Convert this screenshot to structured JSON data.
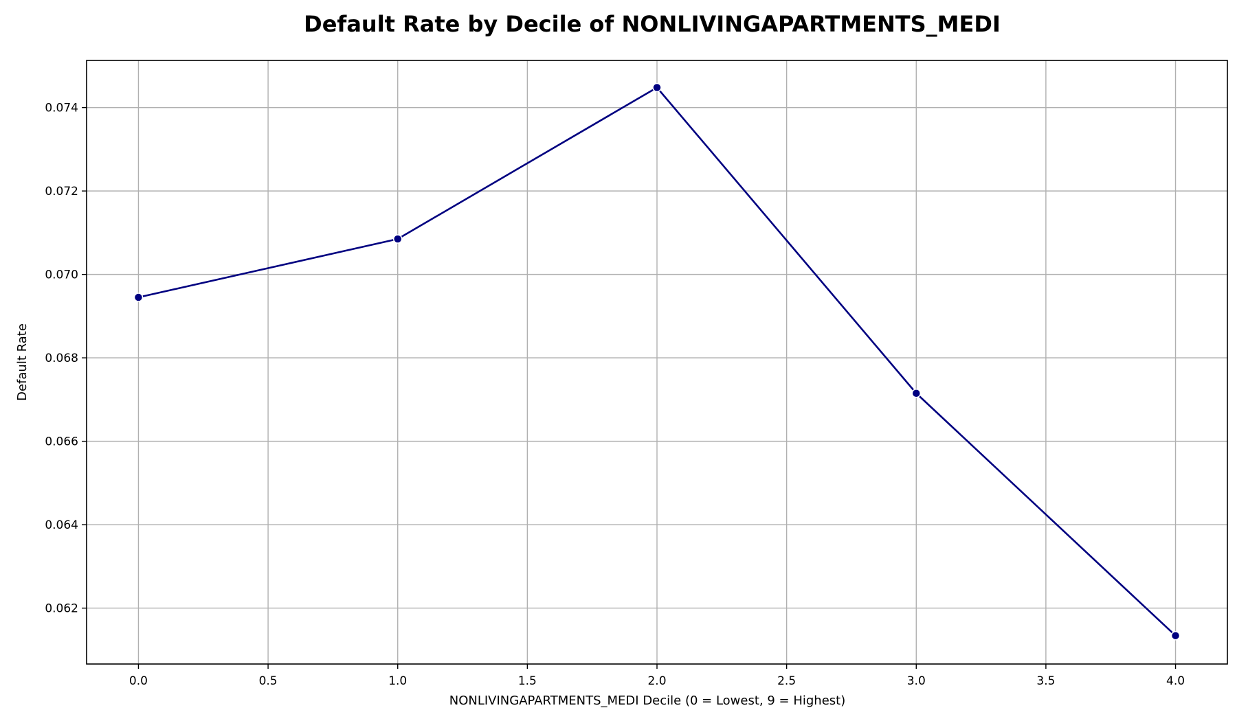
{
  "chart_data": {
    "type": "line",
    "title": "Default Rate by Decile of NONLIVINGAPARTMENTS_MEDI",
    "xlabel": "NONLIVINGAPARTMENTS_MEDI Decile (0 = Lowest, 9 = Highest)",
    "ylabel": "Default Rate",
    "xlim": [
      -0.2,
      4.2
    ],
    "ylim": [
      0.06066,
      0.07513
    ],
    "x_ticks": [
      0.0,
      0.5,
      1.0,
      1.5,
      2.0,
      2.5,
      3.0,
      3.5,
      4.0
    ],
    "x_tick_labels": [
      "0.0",
      "0.5",
      "1.0",
      "1.5",
      "2.0",
      "2.5",
      "3.0",
      "3.5",
      "4.0"
    ],
    "y_ticks": [
      0.062,
      0.064,
      0.066,
      0.068,
      0.07,
      0.072,
      0.074
    ],
    "y_tick_labels": [
      "0.062",
      "0.064",
      "0.066",
      "0.068",
      "0.070",
      "0.072",
      "0.074"
    ],
    "grid": true,
    "series": [
      {
        "x": [
          0,
          1,
          2,
          3,
          4
        ],
        "values": [
          0.06945,
          0.07085,
          0.07448,
          0.06715,
          0.06134
        ],
        "color": "#000080",
        "marker": "circle"
      }
    ],
    "grid_color": "#b0b0b0"
  }
}
